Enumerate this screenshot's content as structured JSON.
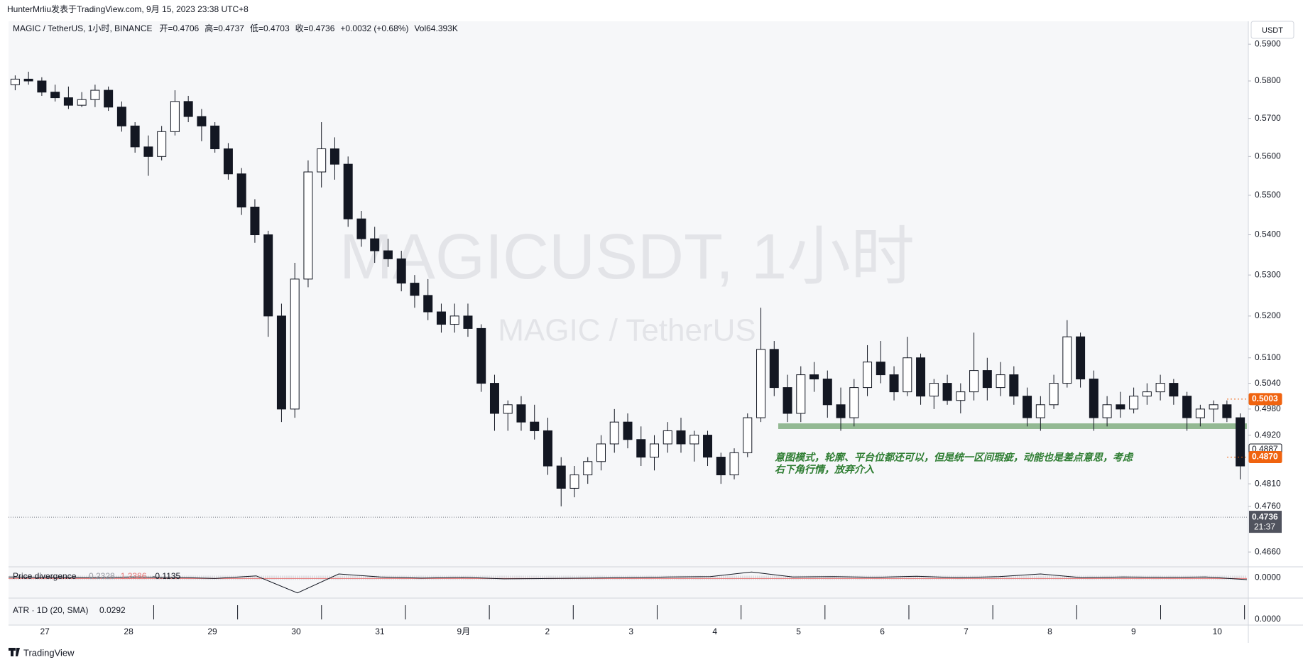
{
  "header": {
    "byline": "HunterMrliu发表于TradingView.com, 9月 15, 2023 23:38 UTC+8",
    "symbol": "MAGIC / TetherUS, 1小时, BINANCE",
    "ohlc": [
      "开=0.4706",
      "高=0.4737",
      "低=0.4703",
      "收=0.4736",
      "+0.0032 (+0.68%)",
      "Vol64.393K"
    ],
    "currency": "USDT",
    "watermark": "MAGICUSDT, 1小时",
    "watermark_sub": "MAGIC / TetherUS",
    "footer": "TradingView"
  },
  "chart_data": {
    "type": "candlestick",
    "log": true,
    "up_color": "#ffffff",
    "down_color": "#131722",
    "ylim": [
      0.4628,
      0.5963
    ],
    "yticks": [
      {
        "value": 0.59,
        "label": "0.5900"
      },
      {
        "value": 0.58,
        "label": "0.5800"
      },
      {
        "value": 0.57,
        "label": "0.5700"
      },
      {
        "value": 0.56,
        "label": "0.5600"
      },
      {
        "value": 0.55,
        "label": "0.5500"
      },
      {
        "value": 0.54,
        "label": "0.5400"
      },
      {
        "value": 0.53,
        "label": "0.5300"
      },
      {
        "value": 0.52,
        "label": "0.5200"
      },
      {
        "value": 0.51,
        "label": "0.5100"
      },
      {
        "value": 0.504,
        "label": "0.5040"
      },
      {
        "value": 0.498,
        "label": "0.4980"
      },
      {
        "value": 0.492,
        "label": "0.4920"
      },
      {
        "value": 0.481,
        "label": "0.4810"
      },
      {
        "value": 0.476,
        "label": "0.4760"
      },
      {
        "value": 0.466,
        "label": "0.4660"
      }
    ],
    "categories": [
      "27",
      "28",
      "29",
      "30",
      "31",
      "9月",
      "2",
      "3",
      "4",
      "5",
      "6",
      "7",
      "8",
      "9",
      "10"
    ],
    "candles": [
      [
        0.579,
        0.5815,
        0.5775,
        0.5805
      ],
      [
        0.5805,
        0.5825,
        0.579,
        0.58
      ],
      [
        0.58,
        0.581,
        0.576,
        0.577
      ],
      [
        0.577,
        0.579,
        0.5745,
        0.5755
      ],
      [
        0.5755,
        0.5785,
        0.5725,
        0.5735
      ],
      [
        0.5735,
        0.577,
        0.573,
        0.575
      ],
      [
        0.575,
        0.579,
        0.573,
        0.5775
      ],
      [
        0.5775,
        0.5785,
        0.572,
        0.573
      ],
      [
        0.573,
        0.5745,
        0.5665,
        0.568
      ],
      [
        0.568,
        0.569,
        0.561,
        0.5625
      ],
      [
        0.5625,
        0.5655,
        0.555,
        0.56
      ],
      [
        0.56,
        0.568,
        0.559,
        0.5665
      ],
      [
        0.5665,
        0.5775,
        0.5655,
        0.5745
      ],
      [
        0.5745,
        0.576,
        0.569,
        0.5705
      ],
      [
        0.5705,
        0.5725,
        0.564,
        0.568
      ],
      [
        0.568,
        0.569,
        0.561,
        0.562
      ],
      [
        0.562,
        0.5635,
        0.554,
        0.5555
      ],
      [
        0.5555,
        0.557,
        0.545,
        0.547
      ],
      [
        0.547,
        0.549,
        0.538,
        0.54
      ],
      [
        0.54,
        0.541,
        0.515,
        0.52
      ],
      [
        0.52,
        0.523,
        0.495,
        0.498
      ],
      [
        0.498,
        0.533,
        0.496,
        0.529
      ],
      [
        0.529,
        0.559,
        0.527,
        0.556
      ],
      [
        0.556,
        0.569,
        0.552,
        0.562
      ],
      [
        0.562,
        0.565,
        0.554,
        0.558
      ],
      [
        0.558,
        0.56,
        0.542,
        0.544
      ],
      [
        0.544,
        0.546,
        0.537,
        0.539
      ],
      [
        0.539,
        0.542,
        0.533,
        0.536
      ],
      [
        0.536,
        0.539,
        0.532,
        0.534
      ],
      [
        0.534,
        0.536,
        0.526,
        0.528
      ],
      [
        0.528,
        0.53,
        0.522,
        0.525
      ],
      [
        0.525,
        0.529,
        0.519,
        0.521
      ],
      [
        0.521,
        0.523,
        0.516,
        0.518
      ],
      [
        0.518,
        0.523,
        0.516,
        0.52
      ],
      [
        0.52,
        0.523,
        0.515,
        0.517
      ],
      [
        0.517,
        0.518,
        0.502,
        0.504
      ],
      [
        0.504,
        0.506,
        0.493,
        0.497
      ],
      [
        0.497,
        0.5,
        0.493,
        0.499
      ],
      [
        0.499,
        0.501,
        0.493,
        0.495
      ],
      [
        0.495,
        0.499,
        0.491,
        0.493
      ],
      [
        0.493,
        0.496,
        0.483,
        0.485
      ],
      [
        0.485,
        0.487,
        0.476,
        0.48
      ],
      [
        0.48,
        0.485,
        0.478,
        0.483
      ],
      [
        0.483,
        0.487,
        0.481,
        0.486
      ],
      [
        0.486,
        0.492,
        0.484,
        0.49
      ],
      [
        0.49,
        0.498,
        0.488,
        0.495
      ],
      [
        0.495,
        0.497,
        0.489,
        0.491
      ],
      [
        0.491,
        0.494,
        0.485,
        0.487
      ],
      [
        0.487,
        0.492,
        0.484,
        0.49
      ],
      [
        0.49,
        0.495,
        0.488,
        0.493
      ],
      [
        0.493,
        0.496,
        0.488,
        0.49
      ],
      [
        0.49,
        0.493,
        0.486,
        0.492
      ],
      [
        0.492,
        0.493,
        0.485,
        0.487
      ],
      [
        0.487,
        0.488,
        0.481,
        0.483
      ],
      [
        0.483,
        0.489,
        0.482,
        0.488
      ],
      [
        0.488,
        0.497,
        0.487,
        0.496
      ],
      [
        0.496,
        0.522,
        0.495,
        0.512
      ],
      [
        0.512,
        0.514,
        0.501,
        0.503
      ],
      [
        0.503,
        0.506,
        0.495,
        0.497
      ],
      [
        0.497,
        0.508,
        0.495,
        0.506
      ],
      [
        0.506,
        0.509,
        0.502,
        0.505
      ],
      [
        0.505,
        0.507,
        0.496,
        0.499
      ],
      [
        0.499,
        0.503,
        0.493,
        0.496
      ],
      [
        0.496,
        0.505,
        0.494,
        0.503
      ],
      [
        0.503,
        0.513,
        0.501,
        0.509
      ],
      [
        0.509,
        0.514,
        0.504,
        0.506
      ],
      [
        0.506,
        0.508,
        0.5,
        0.502
      ],
      [
        0.502,
        0.515,
        0.501,
        0.51
      ],
      [
        0.51,
        0.511,
        0.499,
        0.501
      ],
      [
        0.501,
        0.505,
        0.498,
        0.504
      ],
      [
        0.504,
        0.506,
        0.499,
        0.5
      ],
      [
        0.5,
        0.504,
        0.497,
        0.502
      ],
      [
        0.502,
        0.516,
        0.5,
        0.507
      ],
      [
        0.507,
        0.51,
        0.5,
        0.503
      ],
      [
        0.503,
        0.509,
        0.501,
        0.506
      ],
      [
        0.506,
        0.508,
        0.499,
        0.501
      ],
      [
        0.501,
        0.503,
        0.494,
        0.496
      ],
      [
        0.496,
        0.501,
        0.493,
        0.499
      ],
      [
        0.499,
        0.506,
        0.498,
        0.504
      ],
      [
        0.504,
        0.519,
        0.503,
        0.515
      ],
      [
        0.515,
        0.516,
        0.503,
        0.505
      ],
      [
        0.505,
        0.507,
        0.493,
        0.496
      ],
      [
        0.496,
        0.501,
        0.494,
        0.499
      ],
      [
        0.499,
        0.502,
        0.496,
        0.498
      ],
      [
        0.498,
        0.503,
        0.497,
        0.501
      ],
      [
        0.501,
        0.504,
        0.499,
        0.502
      ],
      [
        0.502,
        0.506,
        0.5,
        0.504
      ],
      [
        0.504,
        0.505,
        0.499,
        0.501
      ],
      [
        0.501,
        0.502,
        0.493,
        0.496
      ],
      [
        0.496,
        0.499,
        0.494,
        0.498
      ],
      [
        0.498,
        0.5,
        0.495,
        0.499
      ],
      [
        0.499,
        0.5,
        0.495,
        0.496
      ],
      [
        0.496,
        0.497,
        0.482,
        0.485
      ]
    ],
    "zone": {
      "low": 0.4934,
      "high": 0.4947,
      "color": "#8db58d"
    },
    "annotation": [
      "意图模式，轮廓、平台位都还可以，但是统一区间瑕疵，动能也是差点意思，考虑",
      "右下角行情，放弃介入"
    ],
    "price_labels": [
      {
        "value": 0.5003,
        "label": "0.5003",
        "color": "#f0630f"
      },
      {
        "value": 0.4887,
        "label": "0.4887",
        "color": "#ffffff"
      },
      {
        "value": 0.487,
        "label": "0.4870",
        "color": "#f0630f"
      }
    ],
    "last_price": {
      "value": 0.4736,
      "label": "0.4736",
      "countdown": "21:37",
      "color": "#50535e"
    },
    "divergence": {
      "name": "Price divergence",
      "legend": [
        "0.2328",
        "1.2386",
        "-0.1135"
      ],
      "ylim": [
        -0.5,
        0.25
      ],
      "axis_label": "0.0000",
      "color": "#131722",
      "values": [
        0.02,
        0.01,
        0.0,
        0.02,
        0.01,
        -0.02,
        0.05,
        -0.4,
        0.1,
        0.02,
        -0.01,
        0.01,
        -0.03,
        -0.02,
        -0.01,
        0.0,
        0.02,
        0.03,
        0.15,
        0.02,
        0.03,
        0.01,
        0.04,
        0.0,
        0.03,
        0.1,
        0.0,
        0.02,
        0.01,
        0.02,
        -0.05
      ]
    },
    "atr": {
      "name": "ATR · 1D (20, SMA)",
      "value_label": "0.0292",
      "axis_label": "0.0000"
    }
  }
}
